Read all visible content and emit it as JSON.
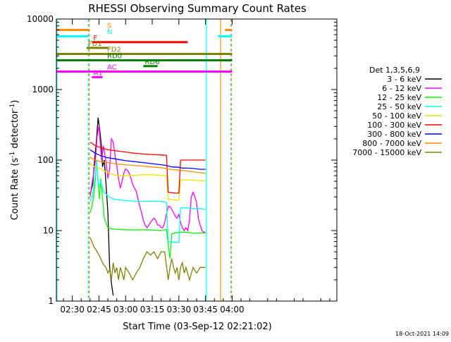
{
  "chart_data": {
    "type": "line",
    "title": "RHESSI Observing Summary Count Rates",
    "xlabel": "Start Time (03-Sep-12 02:21:02)",
    "ylabel_main": "Count Rate (s",
    "ylabel_sup1": "-1",
    "ylabel_mid": " detector",
    "ylabel_sup2": "-1",
    "ylabel_end": ")",
    "timestamp": "18-Oct-2021 14:09",
    "y_scale": "log",
    "ylim": [
      1,
      10000
    ],
    "xlim": [
      141,
      299
    ],
    "x_ticks": [
      {
        "value": 150,
        "label": "02:30"
      },
      {
        "value": 165,
        "label": "02:45"
      },
      {
        "value": 180,
        "label": "03:00"
      },
      {
        "value": 195,
        "label": "03:15"
      },
      {
        "value": 210,
        "label": "03:30"
      },
      {
        "value": 225,
        "label": "03:45"
      },
      {
        "value": 240,
        "label": "04:00"
      }
    ],
    "y_ticks": [
      {
        "value": 1,
        "label": "1"
      },
      {
        "value": 10,
        "label": "10"
      },
      {
        "value": 100,
        "label": "100"
      },
      {
        "value": 1000,
        "label": "1000"
      },
      {
        "value": 10000,
        "label": "10000"
      }
    ],
    "legend_title": "Det 1,3,5,6,9",
    "series": [
      {
        "name": "3 - 6 keV",
        "color": "#000000",
        "points": [
          [
            160,
            33
          ],
          [
            161.5,
            45
          ],
          [
            162.5,
            100
          ],
          [
            163.5,
            180
          ],
          [
            164.5,
            400
          ],
          [
            165.5,
            260
          ],
          [
            166.5,
            150
          ],
          [
            167,
            80
          ],
          [
            168,
            100
          ],
          [
            169,
            45
          ],
          [
            170,
            18
          ],
          [
            171,
            3
          ],
          [
            172,
            1.8
          ],
          [
            173,
            1.2
          ]
        ]
      },
      {
        "name": "6 - 12 keV",
        "color": "#ff00ff",
        "points": [
          [
            160,
            30
          ],
          [
            161,
            45
          ],
          [
            162,
            65
          ],
          [
            163,
            100
          ],
          [
            164,
            220
          ],
          [
            165,
            310
          ],
          [
            166,
            140
          ],
          [
            166.5,
            100
          ],
          [
            167.5,
            160
          ],
          [
            168.5,
            110
          ],
          [
            169,
            95
          ],
          [
            170,
            55
          ],
          [
            171,
            75
          ],
          [
            172,
            200
          ],
          [
            173,
            180
          ],
          [
            174,
            120
          ],
          [
            175,
            85
          ],
          [
            176,
            55
          ],
          [
            177,
            40
          ],
          [
            178,
            50
          ],
          [
            179,
            65
          ],
          [
            180,
            75
          ],
          [
            181,
            72
          ],
          [
            182,
            65
          ],
          [
            183,
            55
          ],
          [
            184,
            45
          ],
          [
            185,
            40
          ],
          [
            186,
            36
          ],
          [
            187,
            28
          ],
          [
            188,
            22
          ],
          [
            189,
            18
          ],
          [
            190,
            14
          ],
          [
            191,
            12
          ],
          [
            192,
            11
          ],
          [
            193,
            12
          ],
          [
            194,
            13
          ],
          [
            195,
            14
          ],
          [
            196,
            15
          ],
          [
            197,
            14
          ],
          [
            198,
            12
          ],
          [
            199,
            12
          ],
          [
            200,
            11
          ],
          [
            201,
            11
          ],
          [
            202,
            13
          ],
          [
            203,
            17
          ],
          [
            204,
            22
          ],
          [
            205,
            22
          ],
          [
            206,
            20
          ],
          [
            207,
            18
          ],
          [
            208,
            16
          ],
          [
            209,
            15
          ],
          [
            210,
            17
          ],
          [
            211,
            13
          ],
          [
            212,
            11
          ],
          [
            213,
            10
          ],
          [
            214,
            11
          ],
          [
            215,
            10
          ],
          [
            216,
            14
          ],
          [
            217,
            30
          ],
          [
            218,
            35
          ],
          [
            219,
            30
          ],
          [
            220,
            25
          ],
          [
            221,
            15
          ],
          [
            222,
            12
          ],
          [
            223,
            10
          ],
          [
            224,
            9.5
          ],
          [
            225,
            9.5
          ]
        ]
      },
      {
        "name": "12 - 25 keV",
        "color": "#00ff00",
        "points": [
          [
            160,
            18
          ],
          [
            161,
            22
          ],
          [
            162,
            30
          ],
          [
            163,
            55
          ],
          [
            163.6,
            100
          ],
          [
            164.2,
            60
          ],
          [
            164.8,
            40
          ],
          [
            165.3,
            28
          ],
          [
            166,
            55
          ],
          [
            166.6,
            38
          ],
          [
            167.2,
            25
          ],
          [
            168,
            15
          ],
          [
            170,
            11
          ],
          [
            173,
            10.5
          ],
          [
            178,
            10.3
          ],
          [
            185,
            10.2
          ],
          [
            192,
            10.3
          ],
          [
            200,
            10
          ],
          [
            203,
            10.4
          ],
          [
            205,
            4
          ],
          [
            206,
            9
          ],
          [
            208,
            9.3
          ],
          [
            212,
            9.5
          ],
          [
            215,
            9.4
          ],
          [
            218,
            9.2
          ],
          [
            222,
            9.3
          ],
          [
            225,
            9.2
          ]
        ]
      },
      {
        "name": "25 - 50 keV",
        "color": "#00ffff",
        "points": [
          [
            160,
            26
          ],
          [
            161,
            30
          ],
          [
            162,
            40
          ],
          [
            163,
            65
          ],
          [
            163.6,
            95
          ],
          [
            164.4,
            55
          ],
          [
            165,
            42
          ],
          [
            166,
            50
          ],
          [
            167,
            40
          ],
          [
            168,
            35
          ],
          [
            170,
            31
          ],
          [
            173,
            28
          ],
          [
            178,
            27
          ],
          [
            185,
            26
          ],
          [
            192,
            26
          ],
          [
            200,
            26
          ],
          [
            203,
            25
          ],
          [
            204,
            7
          ],
          [
            207,
            6.8
          ],
          [
            210,
            6.8
          ],
          [
            211,
            21
          ],
          [
            215,
            21
          ],
          [
            218,
            20.5
          ],
          [
            222,
            20.5
          ],
          [
            225,
            20
          ]
        ]
      },
      {
        "name": "50 - 100 keV",
        "color": "#e6e600",
        "points": [
          [
            160,
            90
          ],
          [
            162,
            82
          ],
          [
            164,
            78
          ],
          [
            166,
            75
          ],
          [
            168,
            70
          ],
          [
            170,
            66
          ],
          [
            173,
            62
          ],
          [
            176,
            60
          ],
          [
            180,
            60
          ],
          [
            185,
            61
          ],
          [
            190,
            62
          ],
          [
            195,
            62
          ],
          [
            200,
            61
          ],
          [
            203,
            60
          ],
          [
            204,
            28
          ],
          [
            208,
            27
          ],
          [
            210,
            27
          ],
          [
            211,
            52
          ],
          [
            215,
            52
          ],
          [
            218,
            52
          ],
          [
            222,
            51
          ],
          [
            225,
            51
          ]
        ]
      },
      {
        "name": "100 - 300 keV",
        "color": "#ff0000",
        "points": [
          [
            160,
            180
          ],
          [
            163,
            160
          ],
          [
            166,
            150
          ],
          [
            170,
            140
          ],
          [
            175,
            135
          ],
          [
            180,
            130
          ],
          [
            185,
            125
          ],
          [
            190,
            122
          ],
          [
            195,
            120
          ],
          [
            200,
            118
          ],
          [
            203,
            117
          ],
          [
            204,
            35
          ],
          [
            208,
            34
          ],
          [
            210,
            34
          ],
          [
            211,
            100
          ],
          [
            215,
            100
          ],
          [
            218,
            100
          ],
          [
            222,
            100
          ],
          [
            225,
            100
          ]
        ]
      },
      {
        "name": "300 - 800 keV",
        "color": "#0000ff",
        "points": [
          [
            160,
            140
          ],
          [
            163,
            125
          ],
          [
            166,
            115
          ],
          [
            170,
            108
          ],
          [
            175,
            103
          ],
          [
            180,
            98
          ],
          [
            185,
            95
          ],
          [
            190,
            92
          ],
          [
            195,
            89
          ],
          [
            200,
            86
          ],
          [
            203,
            84
          ],
          [
            206,
            80
          ],
          [
            210,
            79
          ],
          [
            212,
            77
          ],
          [
            215,
            77
          ],
          [
            218,
            76
          ],
          [
            222,
            74
          ],
          [
            225,
            74
          ]
        ]
      },
      {
        "name": "800 - 7000 keV",
        "color": "#ff8c00",
        "points": [
          [
            160,
            110
          ],
          [
            163,
            100
          ],
          [
            166,
            95
          ],
          [
            170,
            92
          ],
          [
            175,
            88
          ],
          [
            180,
            86
          ],
          [
            185,
            84
          ],
          [
            190,
            82
          ],
          [
            195,
            80
          ],
          [
            200,
            78
          ],
          [
            205,
            74
          ],
          [
            210,
            72
          ],
          [
            215,
            70
          ],
          [
            220,
            67
          ],
          [
            225,
            65
          ]
        ]
      },
      {
        "name": "7000 - 15000 keV",
        "color": "#808000",
        "points": [
          [
            160,
            8
          ],
          [
            161,
            7
          ],
          [
            162,
            6
          ],
          [
            163,
            5.5
          ],
          [
            164,
            5
          ],
          [
            165,
            4.5
          ],
          [
            166,
            4
          ],
          [
            167,
            3.5
          ],
          [
            168,
            3.2
          ],
          [
            169,
            3
          ],
          [
            170,
            2.5
          ],
          [
            171,
            2.8
          ],
          [
            172,
            2
          ],
          [
            173,
            3.5
          ],
          [
            174,
            2.5
          ],
          [
            175,
            3
          ],
          [
            176,
            2
          ],
          [
            177,
            3
          ],
          [
            178,
            2.5
          ],
          [
            179,
            2
          ],
          [
            180,
            3
          ],
          [
            182,
            2.5
          ],
          [
            184,
            2
          ],
          [
            186,
            2.5
          ],
          [
            188,
            3
          ],
          [
            190,
            4
          ],
          [
            192,
            5
          ],
          [
            194,
            4.5
          ],
          [
            196,
            5
          ],
          [
            198,
            4
          ],
          [
            200,
            5
          ],
          [
            202,
            5
          ],
          [
            204,
            2
          ],
          [
            205,
            3
          ],
          [
            206,
            4
          ],
          [
            207,
            3
          ],
          [
            208,
            2.5
          ],
          [
            209,
            3
          ],
          [
            210,
            2
          ],
          [
            211,
            3
          ],
          [
            212,
            3.5
          ],
          [
            213,
            2.5
          ],
          [
            214,
            3
          ],
          [
            216,
            2
          ],
          [
            218,
            3
          ],
          [
            220,
            2.5
          ],
          [
            222,
            3
          ],
          [
            224,
            3
          ],
          [
            225,
            3
          ]
        ]
      }
    ],
    "state_bars": [
      {
        "label": "S",
        "color": "#ff8c00",
        "y": 7000,
        "segments": [
          [
            141,
            159.5
          ],
          [
            236,
            240
          ]
        ]
      },
      {
        "label": "N",
        "color": "#00ffff",
        "y": 5700,
        "segments": [
          [
            141,
            159
          ],
          [
            232,
            240
          ]
        ]
      },
      {
        "label": "F",
        "color": "#ff0000",
        "y": 4700,
        "segments": [
          [
            161,
            215
          ]
        ]
      },
      {
        "label": "FD1",
        "color": "#808000",
        "y": 3900,
        "segments": [
          [
            158,
            170
          ]
        ]
      },
      {
        "label": "FD2",
        "color": "#808000",
        "y": 3200,
        "segments": [
          [
            141,
            240
          ]
        ]
      },
      {
        "label": "RD0",
        "color": "#008000",
        "y": 2600,
        "segments": [
          [
            141,
            240
          ]
        ]
      },
      {
        "label": "RD6",
        "color": "#008000",
        "y": 2150,
        "segments": [
          [
            190,
            198
          ]
        ]
      },
      {
        "label": "AC",
        "color": "#ff00ff",
        "y": 1800,
        "segments": [
          [
            141,
            240
          ]
        ]
      },
      {
        "label": "A1",
        "color": "#ff00ff",
        "y": 1500,
        "segments": [
          [
            161,
            167
          ]
        ]
      }
    ],
    "verticals": [
      {
        "color": "#00ffff",
        "x": 141.3,
        "dashed": false
      },
      {
        "color": "#00ffff",
        "x": 159,
        "dashed": true
      },
      {
        "color": "#ff8c00",
        "x": 159.5,
        "dashed": true
      },
      {
        "color": "#00ffff",
        "x": 225.5,
        "dashed": false
      },
      {
        "color": "#ff8c00",
        "x": 233.5,
        "dashed": false
      },
      {
        "color": "#00ffff",
        "x": 239.3,
        "dashed": true
      },
      {
        "color": "#ff8c00",
        "x": 239.6,
        "dashed": true
      }
    ]
  }
}
